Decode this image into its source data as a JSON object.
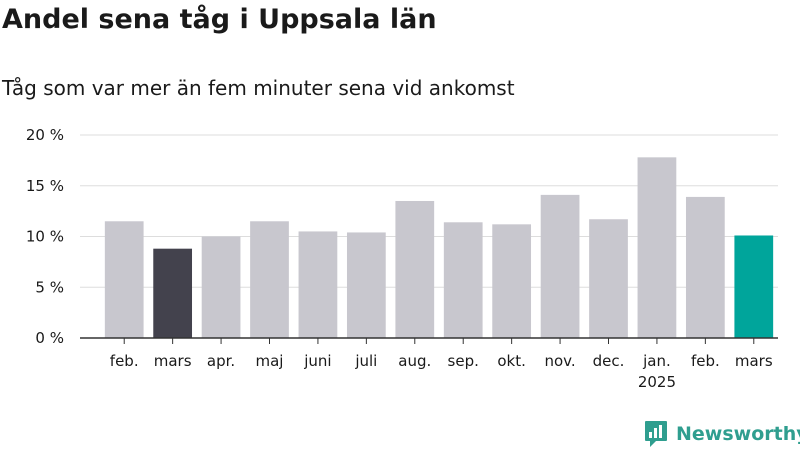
{
  "title": "Andel sena tåg i Uppsala län",
  "subtitle": "Tåg som var mer än fem minuter sena vid ankomst",
  "brand": "Newsworthy",
  "brand_icon": "newsworthy-logo-icon",
  "colors": {
    "default_bar": "#c8c7ce",
    "previous_year_bar": "#43424d",
    "latest_bar": "#00a59b",
    "gridline": "#dddddd",
    "brand": "#2f9e8f"
  },
  "chart_data": {
    "type": "bar",
    "title": "Andel sena tåg i Uppsala län",
    "subtitle": "Tåg som var mer än fem minuter sena vid ankomst",
    "categories": [
      "feb.",
      "mars",
      "apr.",
      "maj",
      "juni",
      "juli",
      "aug.",
      "sep.",
      "okt.",
      "nov.",
      "dec.",
      "jan.",
      "feb.",
      "mars"
    ],
    "year_labels": [
      "",
      "",
      "",
      "",
      "",
      "",
      "",
      "",
      "",
      "",
      "",
      "2025",
      "",
      ""
    ],
    "values": [
      11.5,
      8.8,
      10.0,
      11.5,
      10.5,
      10.4,
      13.5,
      11.4,
      11.2,
      14.1,
      11.7,
      17.8,
      13.9,
      10.1
    ],
    "bar_colors": [
      "default",
      "previous_year",
      "default",
      "default",
      "default",
      "default",
      "default",
      "default",
      "default",
      "default",
      "default",
      "default",
      "default",
      "latest"
    ],
    "unit": "%",
    "yticks": [
      0,
      5,
      10,
      15,
      20
    ],
    "ytick_labels": [
      "0 %",
      "5 %",
      "10 %",
      "15 %",
      "20 %"
    ],
    "ylim": [
      0,
      20
    ],
    "grid": true,
    "xlabel": "",
    "ylabel": ""
  }
}
